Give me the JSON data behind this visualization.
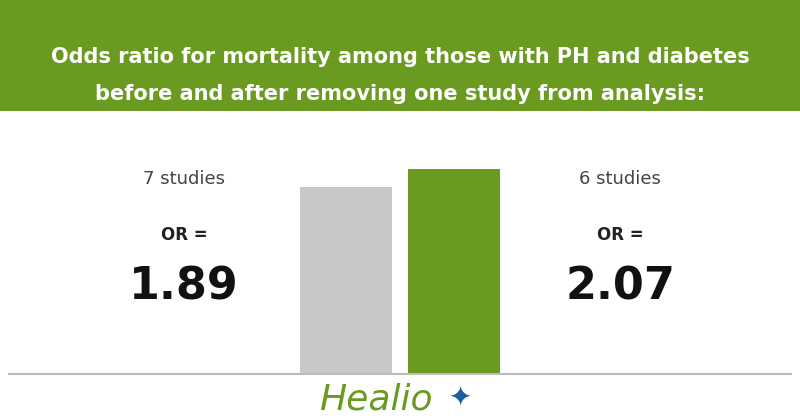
{
  "title_line1": "Odds ratio for mortality among those with PH and diabetes",
  "title_line2": "before and after removing one study from analysis:",
  "title_bg_color": "#6a9a1f",
  "title_text_color": "#ffffff",
  "bg_color": "#ffffff",
  "bar1_value": 1.89,
  "bar2_value": 2.07,
  "bar1_color": "#c8c8c8",
  "bar2_color": "#6a9a1f",
  "bar1_label": "7 studies",
  "bar2_label": "6 studies",
  "bar1_or_label": "OR =",
  "bar2_or_label": "OR =",
  "bar1_or_value": "1.89",
  "bar2_or_value": "2.07",
  "healio_text": "Healio",
  "healio_color": "#6a9a1f",
  "healio_star_color": "#1a5fa0",
  "separator_color": "#bbbbbb",
  "title_fontsize": 15,
  "label_fontsize": 13,
  "or_label_fontsize": 12,
  "or_value_fontsize": 32,
  "healio_fontsize": 26
}
